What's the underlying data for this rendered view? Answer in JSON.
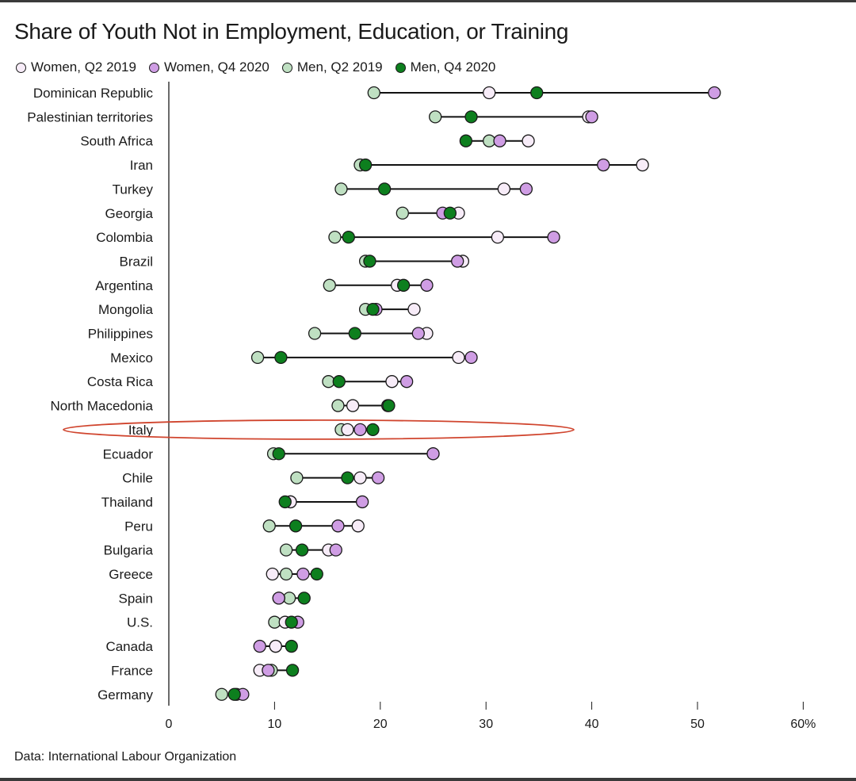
{
  "chart_data": {
    "type": "dot-range",
    "title": "Share of Youth Not in Employment, Education, or Training",
    "source": "Data: International Labour Organization",
    "x_unit": "%",
    "xlim": [
      0,
      60
    ],
    "ticks": [
      "0",
      "10",
      "20",
      "30",
      "40",
      "50",
      "60%"
    ],
    "tick_values": [
      0,
      10,
      20,
      30,
      40,
      50,
      60
    ],
    "series": [
      {
        "name": "Women, Q2 2019",
        "key": "w19",
        "color": "#f7ecf8"
      },
      {
        "name": "Women, Q4 2020",
        "key": "w20",
        "color": "#cf9de4"
      },
      {
        "name": "Men, Q2 2019",
        "key": "m19",
        "color": "#bfe0c2"
      },
      {
        "name": "Men, Q4 2020",
        "key": "m20",
        "color": "#0d7f1e"
      }
    ],
    "highlighted": "Italy",
    "rows": [
      {
        "country": "Dominican Republic",
        "w19": 30.3,
        "w20": 51.6,
        "m19": 19.4,
        "m20": 34.8
      },
      {
        "country": "Palestinian territories",
        "w19": 39.7,
        "w20": 40.0,
        "m19": 25.2,
        "m20": 28.6
      },
      {
        "country": "South Africa",
        "w19": 34.0,
        "w20": 31.3,
        "m19": 30.3,
        "m20": 28.1
      },
      {
        "country": "Iran",
        "w19": 44.8,
        "w20": 41.1,
        "m19": 18.1,
        "m20": 18.6
      },
      {
        "country": "Turkey",
        "w19": 31.7,
        "w20": 33.8,
        "m19": 16.3,
        "m20": 20.4
      },
      {
        "country": "Georgia",
        "w19": 27.4,
        "w20": 25.9,
        "m19": 22.1,
        "m20": 26.6
      },
      {
        "country": "Colombia",
        "w19": 31.1,
        "w20": 36.4,
        "m19": 15.7,
        "m20": 17.0
      },
      {
        "country": "Brazil",
        "w19": 27.8,
        "w20": 27.3,
        "m19": 18.6,
        "m20": 19.0
      },
      {
        "country": "Argentina",
        "w19": 21.6,
        "w20": 24.4,
        "m19": 15.2,
        "m20": 22.2
      },
      {
        "country": "Mongolia",
        "w19": 23.2,
        "w20": 19.6,
        "m19": 18.6,
        "m20": 19.3
      },
      {
        "country": "Philippines",
        "w19": 24.4,
        "w20": 23.6,
        "m19": 13.8,
        "m20": 17.6
      },
      {
        "country": "Mexico",
        "w19": 27.4,
        "w20": 28.6,
        "m19": 8.4,
        "m20": 10.6
      },
      {
        "country": "Costa Rica",
        "w19": 21.1,
        "w20": 22.5,
        "m19": 15.1,
        "m20": 16.1
      },
      {
        "country": "North Macedonia",
        "w19": 17.4,
        "w20": 20.7,
        "m19": 16.0,
        "m20": 20.8
      },
      {
        "country": "Italy",
        "w19": 16.9,
        "w20": 18.1,
        "m19": 16.3,
        "m20": 19.3
      },
      {
        "country": "Ecuador",
        "w19": 25.0,
        "w20": 25.0,
        "m19": 9.9,
        "m20": 10.4
      },
      {
        "country": "Chile",
        "w19": 18.1,
        "w20": 19.8,
        "m19": 12.1,
        "m20": 16.9
      },
      {
        "country": "Thailand",
        "w19": 11.5,
        "w20": 18.3,
        "m19": 11.5,
        "m20": 11.0
      },
      {
        "country": "Peru",
        "w19": 17.9,
        "w20": 16.0,
        "m19": 9.5,
        "m20": 12.0
      },
      {
        "country": "Bulgaria",
        "w19": 15.1,
        "w20": 15.8,
        "m19": 11.1,
        "m20": 12.6
      },
      {
        "country": "Greece",
        "w19": 9.8,
        "w20": 12.7,
        "m19": 11.1,
        "m20": 14.0
      },
      {
        "country": "Spain",
        "w19": 10.4,
        "w20": 10.4,
        "m19": 11.4,
        "m20": 12.8
      },
      {
        "country": "U.S.",
        "w19": 11.0,
        "w20": 12.2,
        "m19": 10.0,
        "m20": 11.6
      },
      {
        "country": "Canada",
        "w19": 10.1,
        "w20": 8.6,
        "m19": 10.1,
        "m20": 11.6
      },
      {
        "country": "France",
        "w19": 8.6,
        "w20": 9.4,
        "m19": 9.7,
        "m20": 11.7
      },
      {
        "country": "Germany",
        "w19": 6.4,
        "w20": 7.0,
        "m19": 5.0,
        "m20": 6.2
      }
    ]
  }
}
